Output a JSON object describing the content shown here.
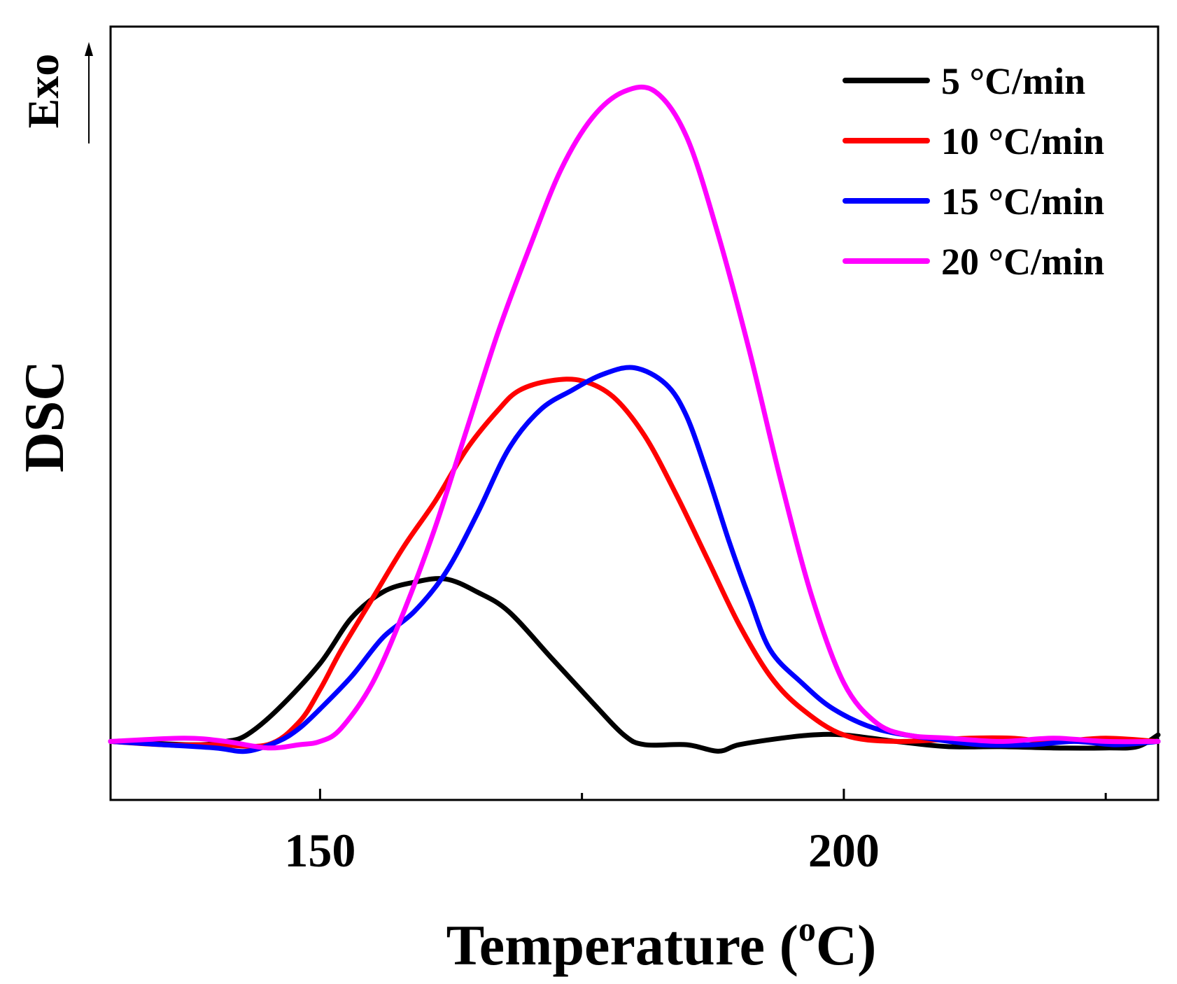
{
  "chart_data": {
    "type": "line",
    "title": "",
    "xlabel_main": "Temperature (",
    "xlabel_sup": "o",
    "xlabel_end": "C)",
    "ylabel": "DSC",
    "exo_label": "Exo",
    "xlim": [
      130,
      230
    ],
    "ylim": [
      -0.09,
      1.1
    ],
    "x_ticks_major": [
      150,
      200
    ],
    "x_tick_labels": [
      "150",
      "200"
    ],
    "x_ticks_minor": [
      175,
      225
    ],
    "legend_position": "top-right",
    "grid": false,
    "series": [
      {
        "name": "5 °C/min",
        "color": "#000000",
        "points": [
          [
            130,
            0
          ],
          [
            138,
            -0.005
          ],
          [
            141,
            0
          ],
          [
            143,
            0.01
          ],
          [
            146,
            0.05
          ],
          [
            150,
            0.12
          ],
          [
            153,
            0.19
          ],
          [
            156,
            0.23
          ],
          [
            159,
            0.245
          ],
          [
            162,
            0.25
          ],
          [
            165,
            0.23
          ],
          [
            168,
            0.2
          ],
          [
            172,
            0.13
          ],
          [
            176,
            0.06
          ],
          [
            179,
            0.01
          ],
          [
            181,
            -0.005
          ],
          [
            185,
            -0.005
          ],
          [
            188,
            -0.015
          ],
          [
            190,
            -0.005
          ],
          [
            194,
            0.005
          ],
          [
            197,
            0.01
          ],
          [
            200,
            0.01
          ],
          [
            205,
            0
          ],
          [
            210,
            -0.008
          ],
          [
            215,
            -0.008
          ],
          [
            220,
            -0.01
          ],
          [
            225,
            -0.01
          ],
          [
            228,
            -0.008
          ],
          [
            230,
            0.01
          ]
        ]
      },
      {
        "name": "10 °C/min",
        "color": "#ff0000",
        "points": [
          [
            130,
            0
          ],
          [
            135,
            -0.005
          ],
          [
            140,
            -0.005
          ],
          [
            145,
            -0.005
          ],
          [
            148,
            0.03
          ],
          [
            150,
            0.08
          ],
          [
            152,
            0.14
          ],
          [
            155,
            0.22
          ],
          [
            158,
            0.3
          ],
          [
            161,
            0.37
          ],
          [
            164,
            0.45
          ],
          [
            167,
            0.51
          ],
          [
            169,
            0.54
          ],
          [
            172,
            0.555
          ],
          [
            175,
            0.555
          ],
          [
            178,
            0.53
          ],
          [
            181,
            0.47
          ],
          [
            184,
            0.38
          ],
          [
            187,
            0.28
          ],
          [
            190,
            0.18
          ],
          [
            193,
            0.1
          ],
          [
            196,
            0.05
          ],
          [
            200,
            0.01
          ],
          [
            205,
            0
          ],
          [
            212,
            0.005
          ],
          [
            216,
            0.005
          ],
          [
            220,
            0
          ],
          [
            225,
            0.005
          ],
          [
            230,
            0
          ]
        ]
      },
      {
        "name": "15 °C/min",
        "color": "#0000ff",
        "points": [
          [
            130,
            0
          ],
          [
            135,
            -0.005
          ],
          [
            140,
            -0.01
          ],
          [
            143,
            -0.015
          ],
          [
            146,
            0
          ],
          [
            148,
            0.02
          ],
          [
            150,
            0.05
          ],
          [
            153,
            0.1
          ],
          [
            156,
            0.16
          ],
          [
            159,
            0.2
          ],
          [
            162,
            0.26
          ],
          [
            165,
            0.35
          ],
          [
            168,
            0.45
          ],
          [
            171,
            0.51
          ],
          [
            174,
            0.54
          ],
          [
            177,
            0.565
          ],
          [
            180,
            0.575
          ],
          [
            183,
            0.55
          ],
          [
            185,
            0.5
          ],
          [
            187,
            0.41
          ],
          [
            189,
            0.31
          ],
          [
            191,
            0.22
          ],
          [
            193,
            0.14
          ],
          [
            196,
            0.09
          ],
          [
            199,
            0.05
          ],
          [
            203,
            0.02
          ],
          [
            208,
            0.005
          ],
          [
            213,
            -0.005
          ],
          [
            218,
            -0.005
          ],
          [
            222,
            0
          ],
          [
            226,
            -0.005
          ],
          [
            230,
            0
          ]
        ]
      },
      {
        "name": "20 °C/min",
        "color": "#ff00ff",
        "points": [
          [
            130,
            0
          ],
          [
            137,
            0.005
          ],
          [
            141,
            0
          ],
          [
            145,
            -0.01
          ],
          [
            148,
            -0.005
          ],
          [
            150,
            0
          ],
          [
            152,
            0.02
          ],
          [
            155,
            0.09
          ],
          [
            158,
            0.2
          ],
          [
            161,
            0.33
          ],
          [
            164,
            0.48
          ],
          [
            167,
            0.63
          ],
          [
            170,
            0.76
          ],
          [
            173,
            0.88
          ],
          [
            176,
            0.96
          ],
          [
            179,
            1.0
          ],
          [
            182,
            1.0
          ],
          [
            185,
            0.93
          ],
          [
            188,
            0.78
          ],
          [
            191,
            0.6
          ],
          [
            194,
            0.4
          ],
          [
            197,
            0.22
          ],
          [
            200,
            0.09
          ],
          [
            203,
            0.03
          ],
          [
            206,
            0.01
          ],
          [
            210,
            0.005
          ],
          [
            215,
            0
          ],
          [
            220,
            0.005
          ],
          [
            225,
            0
          ],
          [
            230,
            0
          ]
        ]
      }
    ]
  }
}
